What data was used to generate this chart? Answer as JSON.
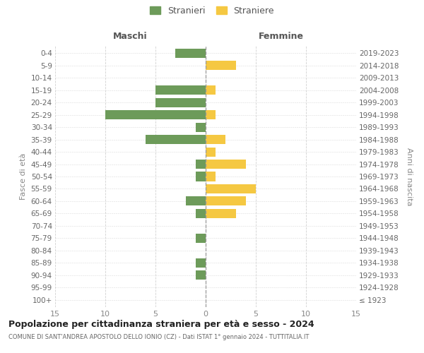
{
  "age_groups": [
    "100+",
    "95-99",
    "90-94",
    "85-89",
    "80-84",
    "75-79",
    "70-74",
    "65-69",
    "60-64",
    "55-59",
    "50-54",
    "45-49",
    "40-44",
    "35-39",
    "30-34",
    "25-29",
    "20-24",
    "15-19",
    "10-14",
    "5-9",
    "0-4"
  ],
  "birth_years": [
    "≤ 1923",
    "1924-1928",
    "1929-1933",
    "1934-1938",
    "1939-1943",
    "1944-1948",
    "1949-1953",
    "1954-1958",
    "1959-1963",
    "1964-1968",
    "1969-1973",
    "1974-1978",
    "1979-1983",
    "1984-1988",
    "1989-1993",
    "1994-1998",
    "1999-2003",
    "2004-2008",
    "2009-2013",
    "2014-2018",
    "2019-2023"
  ],
  "males": [
    0,
    0,
    1,
    1,
    0,
    1,
    0,
    1,
    2,
    0,
    1,
    1,
    0,
    6,
    1,
    10,
    5,
    5,
    0,
    0,
    3
  ],
  "females": [
    0,
    0,
    0,
    0,
    0,
    0,
    0,
    3,
    4,
    5,
    1,
    4,
    1,
    2,
    0,
    1,
    0,
    1,
    0,
    3,
    0
  ],
  "male_color": "#6d9b5a",
  "female_color": "#f5c842",
  "title": "Popolazione per cittadinanza straniera per età e sesso - 2024",
  "subtitle": "COMUNE DI SANT'ANDREA APOSTOLO DELLO IONIO (CZ) - Dati ISTAT 1° gennaio 2024 - TUTTITALIA.IT",
  "xlabel_left": "Maschi",
  "xlabel_right": "Femmine",
  "ylabel_left": "Fasce di età",
  "ylabel_right": "Anni di nascita",
  "legend_males": "Stranieri",
  "legend_females": "Straniere",
  "xlim": 15,
  "background_color": "#ffffff",
  "grid_color": "#cccccc"
}
